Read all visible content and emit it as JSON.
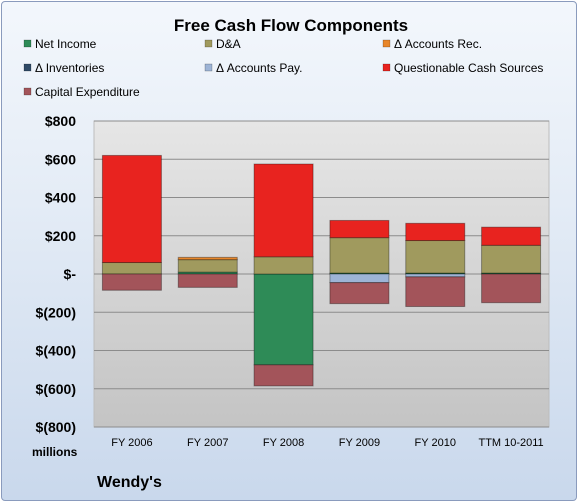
{
  "chart_data": {
    "type": "bar",
    "stacked": true,
    "title": "Free Cash Flow Components",
    "company": "Wendy's",
    "unit_label": "millions",
    "categories": [
      "FY 2006",
      "FY 2007",
      "FY 2008",
      "FY 2009",
      "FY 2010",
      "TTM 10-2011"
    ],
    "ylim": [
      -800,
      800
    ],
    "yticks": [
      800,
      600,
      400,
      200,
      0,
      -200,
      -400,
      -600,
      -800
    ],
    "ytick_labels": [
      "$800",
      "$600",
      "$400",
      "$200",
      "$-",
      "$(200)",
      "$(400)",
      "$(600)",
      "$(800)"
    ],
    "grid": true,
    "legend_position": "top",
    "series": [
      {
        "name": "Net Income",
        "color": "#2e8b57",
        "values": [
          0,
          10,
          -475,
          5,
          5,
          5
        ]
      },
      {
        "name": "D&A",
        "color": "#a09a5e",
        "values": [
          60,
          65,
          90,
          185,
          170,
          145
        ]
      },
      {
        "name": "Δ Accounts Rec.",
        "color": "#e8862a",
        "values": [
          0,
          12,
          0,
          0,
          0,
          0
        ]
      },
      {
        "name": "Δ Inventories",
        "color": "#2f4a66",
        "values": [
          0,
          0,
          0,
          0,
          0,
          0
        ]
      },
      {
        "name": "Δ Accounts Pay.",
        "color": "#9db4d6",
        "values": [
          0,
          0,
          0,
          -45,
          -15,
          0
        ]
      },
      {
        "name": "Questionable Cash Sources",
        "color": "#e8231f",
        "values": [
          560,
          0,
          485,
          90,
          90,
          95
        ]
      },
      {
        "name": "Capital Expenditure",
        "color": "#a3545a",
        "values": [
          -85,
          -70,
          -110,
          -110,
          -155,
          -150
        ]
      }
    ]
  }
}
